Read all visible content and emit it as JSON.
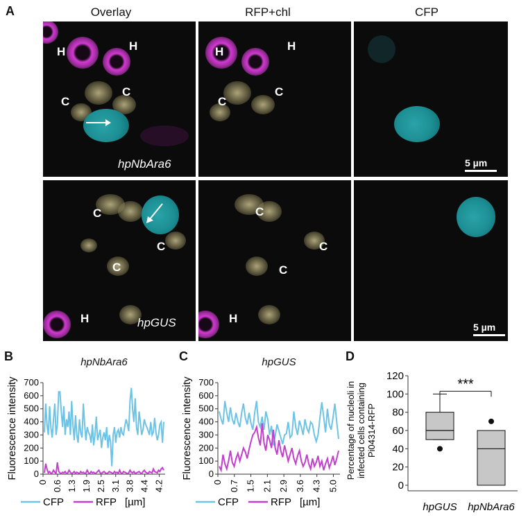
{
  "panels": {
    "A": {
      "letter": "A",
      "columns": [
        "Overlay",
        "RFP+chl",
        "CFP"
      ],
      "rows": [
        {
          "condition": "hpNbAra6",
          "scale": "5 µm"
        },
        {
          "condition": "hpGUS",
          "scale": "5 µm"
        }
      ],
      "labels": {
        "haustorium": "H",
        "chloroplast": "C"
      }
    },
    "B": {
      "letter": "B",
      "title": "hpNbAra6"
    },
    "C": {
      "letter": "C",
      "title": "hpGUS"
    },
    "D": {
      "letter": "D"
    }
  },
  "colors": {
    "cfp": "#6cc3e6",
    "rfp": "#c23fce",
    "box": "#c7c7c7"
  },
  "chart_data": [
    {
      "type": "line",
      "title": "hpNbAra6",
      "xlabel": "[µm]",
      "ylabel": "Fluorescence intensity",
      "xtick_labels": [
        "0",
        "0.6",
        "1.3",
        "1.9",
        "2.5",
        "3.1",
        "3.8",
        "4.4",
        "4.2"
      ],
      "yticks": [
        0,
        100,
        200,
        300,
        400,
        500,
        600,
        700
      ],
      "ylim": [
        0,
        700
      ],
      "xlim": [
        0,
        4.4
      ],
      "legend": "bottom",
      "series": [
        {
          "name": "CFP",
          "color": "#6cc3e6",
          "values": [
            320,
            540,
            380,
            300,
            520,
            360,
            280,
            420,
            540,
            300,
            380,
            630,
            630,
            480,
            360,
            520,
            300,
            420,
            360,
            480,
            300,
            560,
            380,
            260,
            450,
            300,
            240,
            420,
            320,
            280,
            540,
            380,
            260,
            360,
            320,
            300,
            240,
            380,
            220,
            300,
            440,
            260,
            300,
            340,
            200,
            280,
            320,
            260,
            360,
            200,
            300,
            250,
            60,
            300,
            360,
            240,
            320,
            340,
            280,
            360,
            310,
            300,
            370,
            420,
            380,
            330,
            560,
            660,
            500,
            400,
            580,
            360,
            300,
            480,
            400,
            300,
            340,
            420,
            380,
            360,
            330,
            300,
            400,
            300,
            320,
            430,
            320,
            260,
            300,
            380,
            400,
            240,
            400
          ]
        },
        {
          "name": "RFP",
          "color": "#c23fce",
          "values": [
            10,
            80,
            40,
            10,
            20,
            5,
            10,
            30,
            15,
            5,
            90,
            20,
            10,
            5,
            15,
            10,
            20,
            5,
            10,
            30,
            15,
            5,
            10,
            20,
            5,
            15,
            10,
            5,
            20,
            10,
            15,
            5,
            10,
            30,
            10,
            5,
            20,
            10,
            15,
            5,
            10,
            20,
            30,
            10,
            5,
            15,
            20,
            10,
            5,
            10,
            20,
            15,
            10,
            5,
            20,
            10,
            15,
            5,
            30,
            10,
            5,
            20,
            15,
            10,
            5,
            10,
            30,
            15,
            10,
            20,
            5,
            10,
            15,
            20,
            10,
            5,
            20,
            30,
            15,
            10,
            5,
            20,
            15,
            10,
            40,
            20,
            15,
            10,
            30,
            20,
            40,
            50,
            30
          ]
        }
      ]
    },
    {
      "type": "line",
      "title": "hpGUS",
      "xlabel": "[µm]",
      "ylabel": "Fluorescence intensity",
      "xtick_labels": [
        "0",
        "0.7",
        "1.5",
        "2.1",
        "2.9",
        "3.6",
        "4.3",
        "5.0"
      ],
      "yticks": [
        0,
        100,
        200,
        300,
        400,
        500,
        600,
        700
      ],
      "ylim": [
        0,
        700
      ],
      "xlim": [
        0,
        5.5
      ],
      "legend": "bottom",
      "series": [
        {
          "name": "CFP",
          "color": "#6cc3e6",
          "values": [
            480,
            420,
            380,
            560,
            470,
            400,
            510,
            420,
            380,
            470,
            400,
            360,
            470,
            540,
            430,
            380,
            470,
            390,
            340,
            470,
            560,
            400,
            360,
            440,
            340,
            480,
            420,
            300,
            370,
            220,
            290,
            380,
            330,
            280,
            230,
            300,
            310,
            400,
            280,
            300,
            480,
            360,
            300,
            410,
            360,
            300,
            420,
            350,
            320,
            400,
            380,
            300,
            250,
            300,
            430,
            550,
            440,
            320,
            500,
            380,
            340,
            430,
            540,
            400,
            270
          ]
        },
        {
          "name": "RFP",
          "color": "#c23fce",
          "values": [
            60,
            30,
            150,
            80,
            40,
            100,
            180,
            90,
            60,
            120,
            160,
            100,
            150,
            200,
            170,
            120,
            190,
            250,
            300,
            320,
            360,
            280,
            220,
            390,
            240,
            180,
            300,
            260,
            200,
            340,
            200,
            150,
            260,
            180,
            130,
            220,
            160,
            100,
            150,
            200,
            120,
            80,
            140,
            180,
            100,
            60,
            90,
            150,
            80,
            40,
            120,
            60,
            90,
            140,
            60,
            100,
            30,
            80,
            120,
            50,
            90,
            140,
            70,
            120,
            180
          ]
        }
      ]
    },
    {
      "type": "box",
      "ylabel": "Percentage of nucleoli in infected  cells containing Pi04314-RFP",
      "categories": [
        "hpGUS",
        "hpNbAra6"
      ],
      "yticks": [
        0,
        20,
        40,
        60,
        80,
        100,
        120
      ],
      "ylim": [
        0,
        120
      ],
      "significance": "***",
      "boxes": [
        {
          "name": "hpGUS",
          "whisker_low": 50,
          "q1": 50,
          "median": 60,
          "q3": 80,
          "whisker_high": 100,
          "outliers": [
            40
          ]
        },
        {
          "name": "hpNbAra6",
          "whisker_low": 0,
          "q1": 0,
          "median": 40,
          "q3": 60,
          "whisker_high": 60,
          "outliers": [
            70
          ]
        }
      ]
    }
  ]
}
